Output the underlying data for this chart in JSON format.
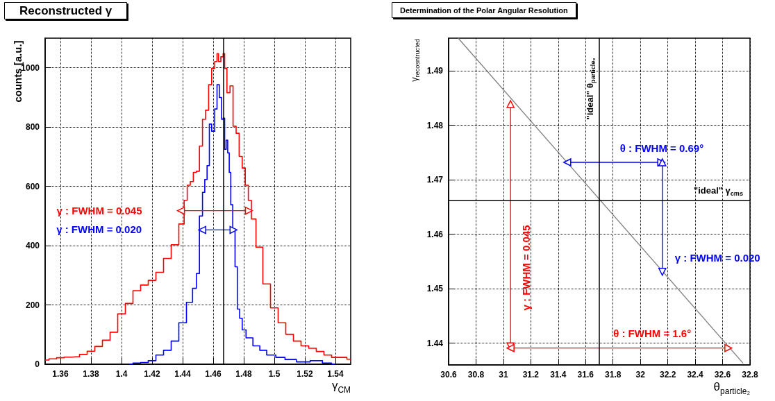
{
  "chart_data": [
    {
      "type": "step",
      "title": "Reconstructed γ",
      "xlabel": "γ$_{CM}$",
      "ylabel": "counts  [a.u.]",
      "xlim": [
        1.35,
        1.55
      ],
      "xticks": [
        1.36,
        1.38,
        1.4,
        1.42,
        1.44,
        1.46,
        1.48,
        1.5,
        1.52,
        1.54
      ],
      "ylim": [
        0,
        1100
      ],
      "yticks": [
        0,
        200,
        400,
        600,
        800,
        1000
      ],
      "grid": true,
      "ref_lines": [
        {
          "axis": "x",
          "value": 1.4665,
          "color": "#000000"
        }
      ],
      "series": [
        {
          "color": "#ff0000",
          "x": [
            1.35,
            1.355,
            1.36,
            1.365,
            1.37,
            1.375,
            1.38,
            1.385,
            1.39,
            1.395,
            1.4,
            1.405,
            1.41,
            1.415,
            1.42,
            1.425,
            1.43,
            1.435,
            1.44,
            1.442,
            1.444,
            1.446,
            1.448,
            1.45,
            1.452,
            1.454,
            1.456,
            1.458,
            1.46,
            1.462,
            1.463,
            1.464,
            1.466,
            1.467,
            1.468,
            1.47,
            1.472,
            1.474,
            1.476,
            1.478,
            1.48,
            1.482,
            1.484,
            1.486,
            1.49,
            1.495,
            1.5,
            1.505,
            1.51,
            1.515,
            1.52,
            1.525,
            1.53,
            1.535,
            1.54,
            1.545,
            1.55
          ],
          "values": [
            14,
            18,
            22,
            24,
            25,
            33,
            44,
            60,
            81,
            108,
            170,
            205,
            248,
            267,
            283,
            310,
            357,
            403,
            473,
            553,
            604,
            616,
            647,
            651,
            736,
            826,
            857,
            943,
            998,
            1021,
            1048,
            1021,
            1037,
            1048,
            998,
            916,
            939,
            803,
            779,
            701,
            662,
            604,
            553,
            490,
            395,
            271,
            190,
            140,
            101,
            78,
            62,
            54,
            43,
            31,
            23,
            23,
            17
          ]
        },
        {
          "color": "#0000ff",
          "x": [
            1.405,
            1.41,
            1.415,
            1.42,
            1.425,
            1.43,
            1.435,
            1.44,
            1.445,
            1.448,
            1.45,
            1.452,
            1.454,
            1.455,
            1.457,
            1.458,
            1.46,
            1.462,
            1.463,
            1.465,
            1.466,
            1.467,
            1.468,
            1.469,
            1.47,
            1.471,
            1.472,
            1.4736,
            1.475,
            1.4766,
            1.478,
            1.48,
            1.483,
            1.489,
            1.492,
            1.498,
            1.504,
            1.51,
            1.519,
            1.528,
            1.535,
            1.54
          ],
          "values": [
            0,
            4,
            6,
            12,
            31,
            47,
            78,
            140,
            209,
            256,
            306,
            500,
            580,
            623,
            670,
            810,
            786,
            861,
            943,
            900,
            826,
            830,
            725,
            756,
            713,
            647,
            538,
            457,
            329,
            186,
            155,
            116,
            89,
            62,
            47,
            31,
            23,
            16,
            8,
            12,
            4,
            0
          ]
        },
        {
          "type": "line",
          "name": "γ : FWHM = 0.045",
          "color": "#ff0000",
          "marker": "triangle",
          "x": [
            1.4389,
            1.4834
          ],
          "values": [
            518,
            518
          ]
        },
        {
          "type": "line",
          "name": "γ : FWHM = 0.020",
          "color": "#0000ff",
          "marker": "triangle",
          "x": [
            1.4528,
            1.4733
          ],
          "values": [
            453,
            453
          ]
        }
      ]
    },
    {
      "type": "line",
      "title": "Determination of the Polar Angular Resolution",
      "xlabel": "θ$_{particle₂}$",
      "ylabel": "γ$_{recosntructed}$",
      "xlim": [
        30.6,
        32.8
      ],
      "xticks": [
        30.6,
        30.8,
        31,
        31.2,
        31.4,
        31.6,
        31.8,
        32,
        32.2,
        32.4,
        32.6,
        32.8
      ],
      "ylim": [
        1.436,
        1.496
      ],
      "yticks": [
        1.44,
        1.45,
        1.46,
        1.47,
        1.48,
        1.49
      ],
      "grid": true,
      "ref_lines": [
        {
          "axis": "x",
          "value": 31.7,
          "label": "\"ideal\" θ$_{particle₂}$",
          "color": "#000000"
        },
        {
          "axis": "y",
          "value": 1.4662,
          "label": "\"ideal\" γ$_{cms}$",
          "color": "#000000"
        }
      ],
      "series": [
        {
          "color": "#808080",
          "x": [
            30.67,
            32.75
          ],
          "values": [
            1.496,
            1.4363
          ]
        },
        {
          "name": "θ : FWHM = 0.69°",
          "color": "#0000ff",
          "marker": "triangle",
          "x": [
            31.466,
            32.152
          ],
          "values": [
            1.4732,
            1.4732
          ]
        },
        {
          "name": "γ : FWHM = 0.020",
          "color": "#0000ff",
          "marker": "triangle",
          "x": [
            32.16,
            32.16
          ],
          "values": [
            1.4732,
            1.4531
          ]
        },
        {
          "name": "γ : FWHM = 0.045",
          "color": "#ff0000",
          "marker": "triangle",
          "x": [
            31.052,
            31.052
          ],
          "values": [
            1.4394,
            1.4839
          ]
        },
        {
          "name": "θ : FWHM = 1.6°",
          "color": "#ff0000",
          "marker": "triangle",
          "x": [
            31.052,
            32.642
          ],
          "values": [
            1.4391,
            1.4391
          ]
        }
      ]
    }
  ]
}
